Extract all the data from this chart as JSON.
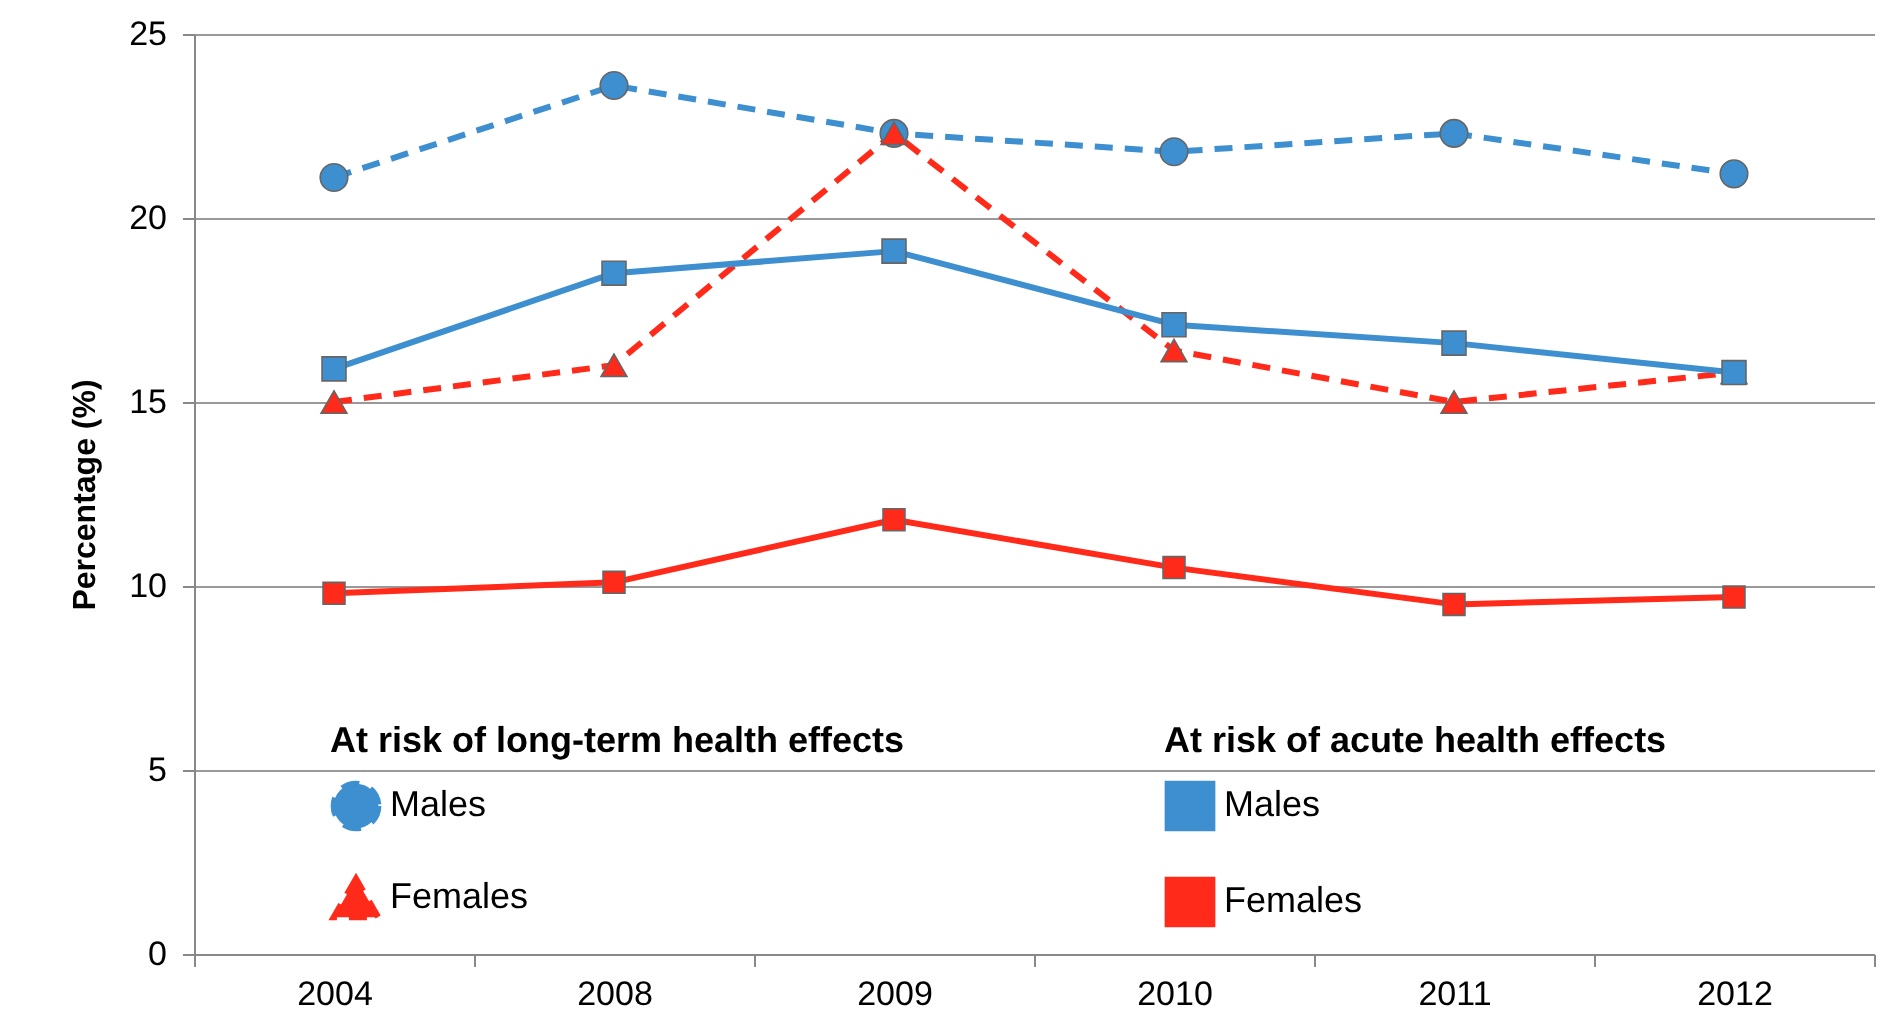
{
  "chart_data": {
    "type": "line",
    "categories": [
      "2004",
      "2008",
      "2009",
      "2010",
      "2011",
      "2012"
    ],
    "ylabel": "Percentage (%)",
    "legend_title": [
      "At risk of long-term health effects",
      "At risk of acute health effects"
    ],
    "series": [
      {
        "name": "Males",
        "color": "#3d8fcf",
        "line_style": "dashed",
        "marker": "circle",
        "values": [
          21.1,
          23.6,
          22.3,
          21.8,
          22.3,
          21.2
        ]
      },
      {
        "name": "Females",
        "color": "#ff2a1a",
        "line_style": "dashed",
        "marker": "triangle",
        "values": [
          15.0,
          16.0,
          22.3,
          16.4,
          15.0,
          15.8
        ]
      },
      {
        "name": "Males",
        "color": "#3d8fcf",
        "line_style": "solid",
        "marker": "square",
        "values": [
          15.9,
          18.5,
          19.1,
          17.1,
          16.6,
          15.8
        ]
      },
      {
        "name": "Females",
        "color": "#ff2a1a",
        "line_style": "solid",
        "marker": "square",
        "values": [
          9.8,
          10.1,
          11.8,
          10.5,
          9.5,
          9.7
        ]
      }
    ],
    "ylim": [
      0,
      25
    ],
    "yticks": [
      0,
      5,
      10,
      15,
      20,
      25
    ],
    "grid": "y",
    "legend": "bottom"
  }
}
